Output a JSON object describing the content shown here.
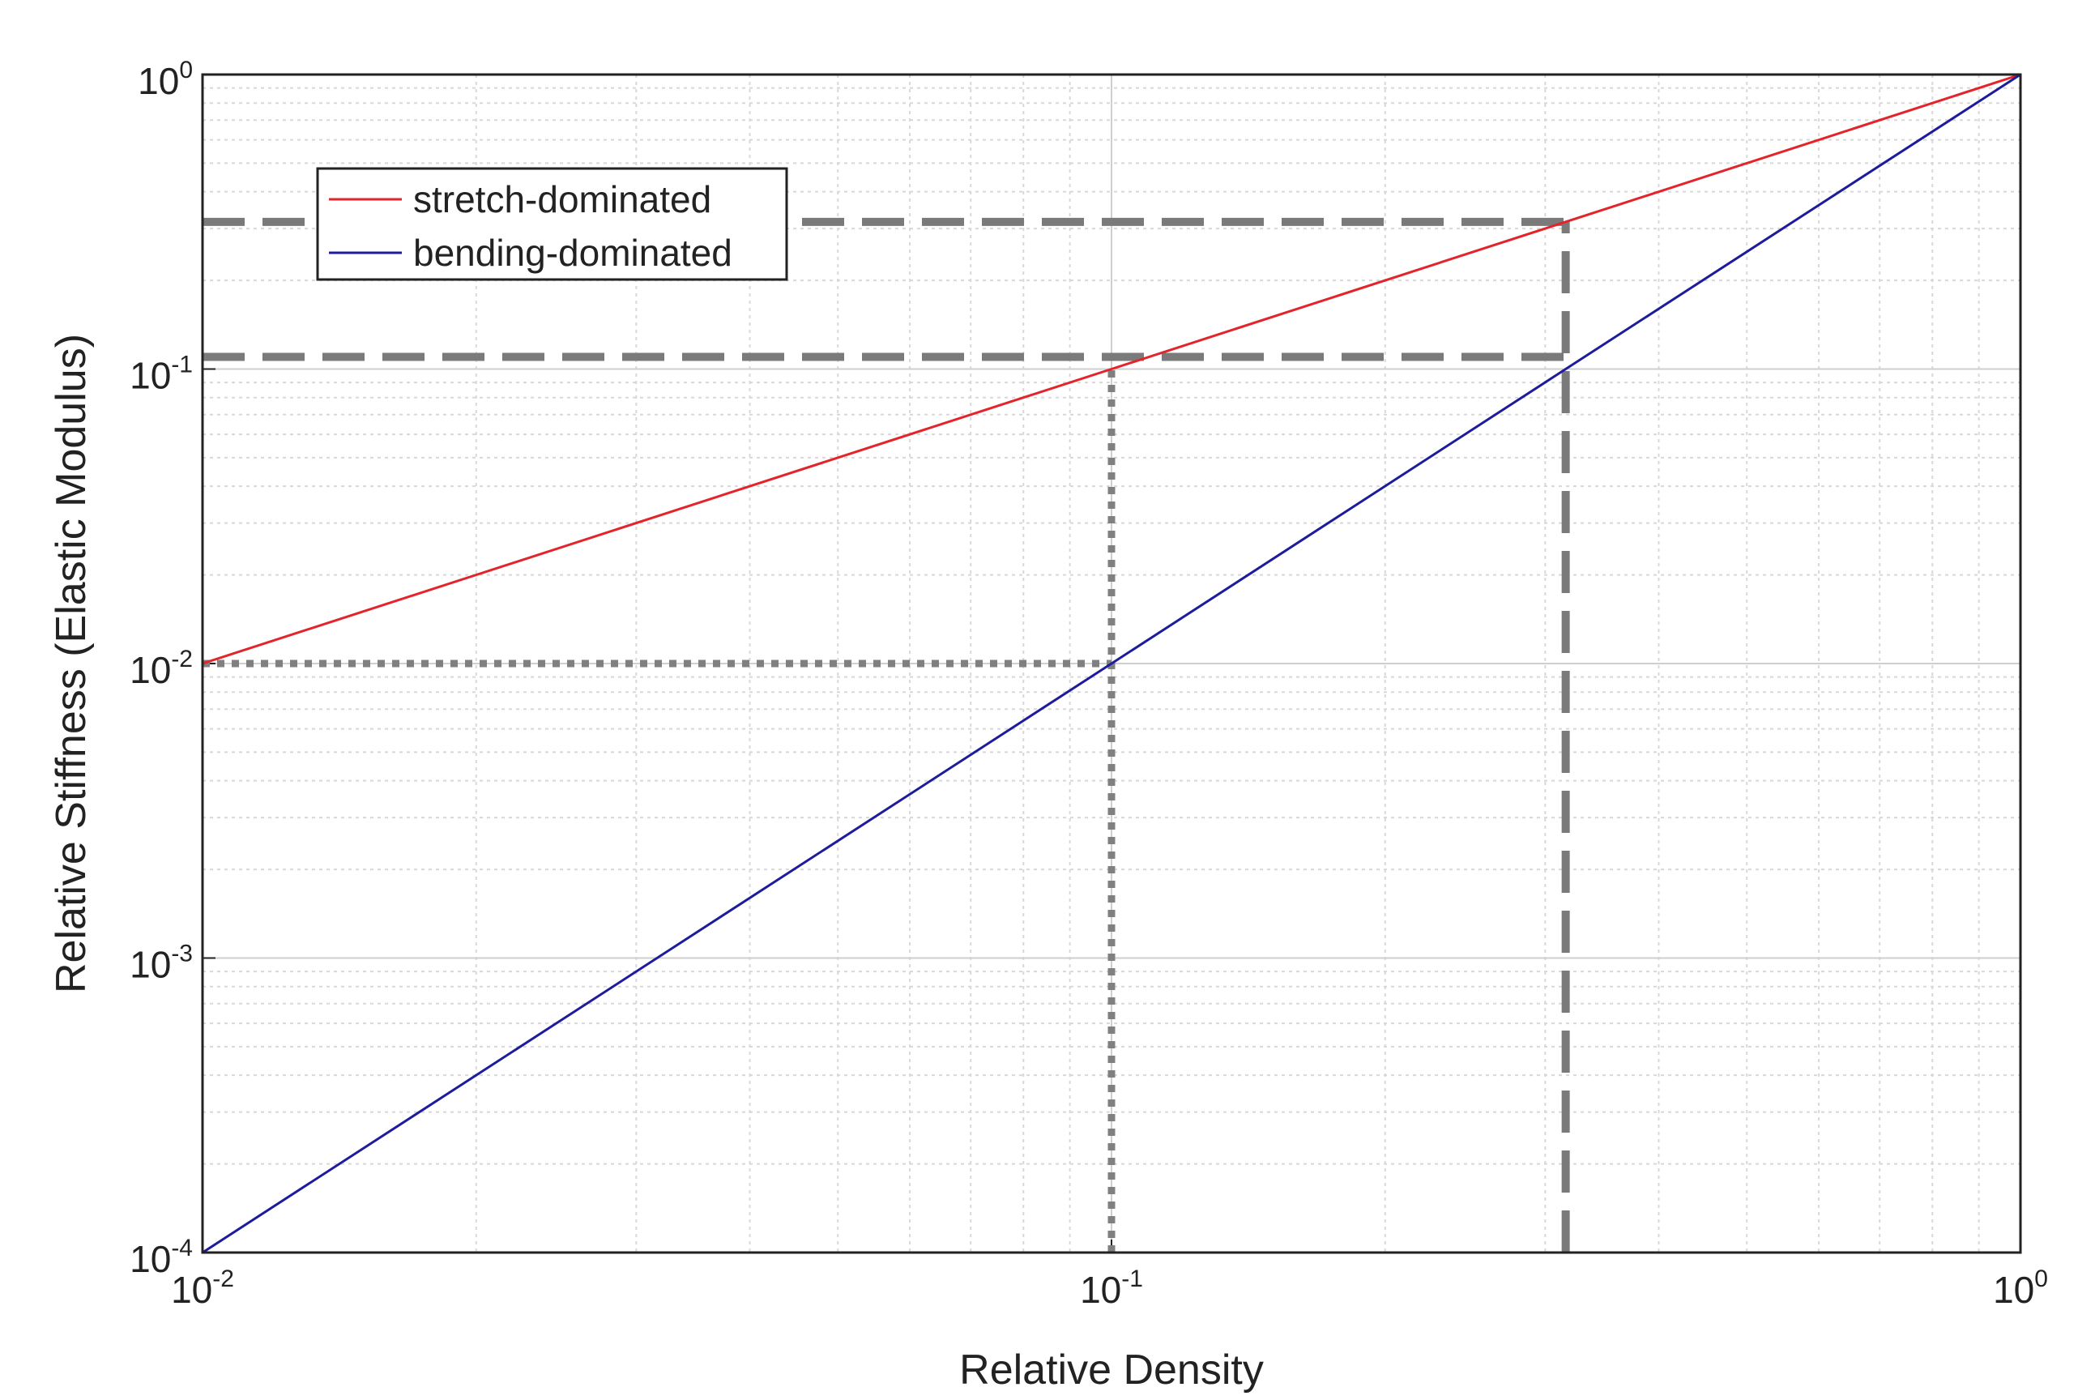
{
  "chart_data": {
    "type": "line",
    "x_label": "Relative Density",
    "y_label": "Relative Stiffness (Elastic Modulus)",
    "x": [
      0.01,
      0.1,
      0.316,
      1
    ],
    "series": [
      {
        "name": "stretch-dominated",
        "color": "#e3242b",
        "values": [
          0.01,
          0.1,
          0.316,
          1
        ]
      },
      {
        "name": "bending-dominated",
        "color": "#1c1c9c",
        "values": [
          0.0001,
          0.01,
          0.1,
          1
        ]
      }
    ],
    "xlim": [
      0.01,
      1
    ],
    "ylim": [
      0.0001,
      1
    ],
    "log_x": true,
    "log_y": true,
    "grid": true,
    "minor_grid": true,
    "legend": "upper left",
    "xticks": [
      {
        "value": 0.01,
        "label": "10",
        "sup": "-2"
      },
      {
        "value": 0.1,
        "label": "10",
        "sup": "-1"
      },
      {
        "value": 1,
        "label": "10",
        "sup": "0"
      }
    ],
    "yticks": [
      {
        "value": 0.0001,
        "label": "10",
        "sup": "-4"
      },
      {
        "value": 0.001,
        "label": "10",
        "sup": "-3"
      },
      {
        "value": 0.01,
        "label": "10",
        "sup": "-2"
      },
      {
        "value": 0.1,
        "label": "10",
        "sup": "-1"
      },
      {
        "value": 1,
        "label": "10",
        "sup": "0"
      }
    ],
    "reference_lines": [
      {
        "x": [
          0.01,
          0.316
        ],
        "y": [
          0.316,
          0.316
        ],
        "style": "dashed",
        "color": "#7a7a7a"
      },
      {
        "x": [
          0.01,
          0.316
        ],
        "y": [
          0.11,
          0.11
        ],
        "style": "dashed",
        "color": "#7a7a7a"
      },
      {
        "x": [
          0.316,
          0.316
        ],
        "y": [
          0.0001,
          0.316
        ],
        "style": "dashed",
        "color": "#7a7a7a"
      },
      {
        "x": [
          0.1,
          0.1
        ],
        "y": [
          0.0001,
          0.1
        ],
        "style": "dotted",
        "color": "#808080"
      },
      {
        "x": [
          0.01,
          0.1
        ],
        "y": [
          0.01,
          0.01
        ],
        "style": "dotted",
        "color": "#808080"
      }
    ]
  }
}
